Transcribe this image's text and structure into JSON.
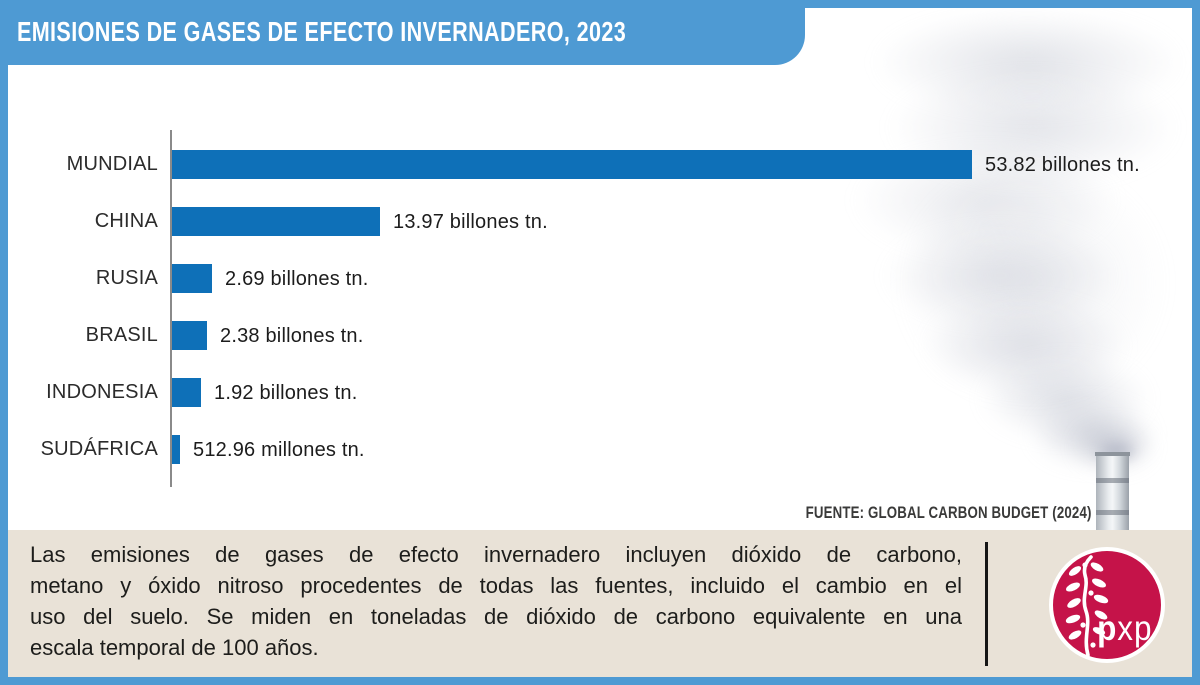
{
  "header": {
    "title": "EMISIONES DE GASES DE EFECTO INVERNADERO, 2023",
    "banner_color": "#4e9ad3"
  },
  "chart_data": {
    "type": "bar",
    "orientation": "horizontal",
    "title": "EMISIONES DE GASES DE EFECTO INVERNADERO, 2023",
    "categories": [
      "MUNDIAL",
      "CHINA",
      "RUSIA",
      "BRASIL",
      "INDONESIA",
      "SUDÁFRICA"
    ],
    "values": [
      53.82,
      13.97,
      2.69,
      2.38,
      1.92,
      0.51296
    ],
    "unit": "billones de toneladas",
    "value_labels": [
      "53.82 billones tn.",
      "13.97 billones tn.",
      "2.69 billones tn.",
      "2.38 billones tn.",
      "1.92 billones tn.",
      "512.96 millones tn."
    ],
    "xlim": [
      0,
      53.82
    ],
    "bar_color": "#0e70b8",
    "grid": false,
    "legend": "none"
  },
  "source": {
    "label": "FUENTE: GLOBAL CARBON BUDGET (2024)"
  },
  "footer": {
    "background": "#e9e2d7",
    "lines": [
      "Las emisiones de gases de efecto invernadero incluyen dióxido de carbono,",
      "metano y óxido nitroso procedentes de todas las fuentes, incluido el cambio en el",
      "uso del suelo. Se miden en toneladas de dióxido de carbono equivalente en una",
      "escala temporal de 100 años."
    ]
  },
  "logo": {
    "text": "pxp",
    "color": "#c51349"
  }
}
